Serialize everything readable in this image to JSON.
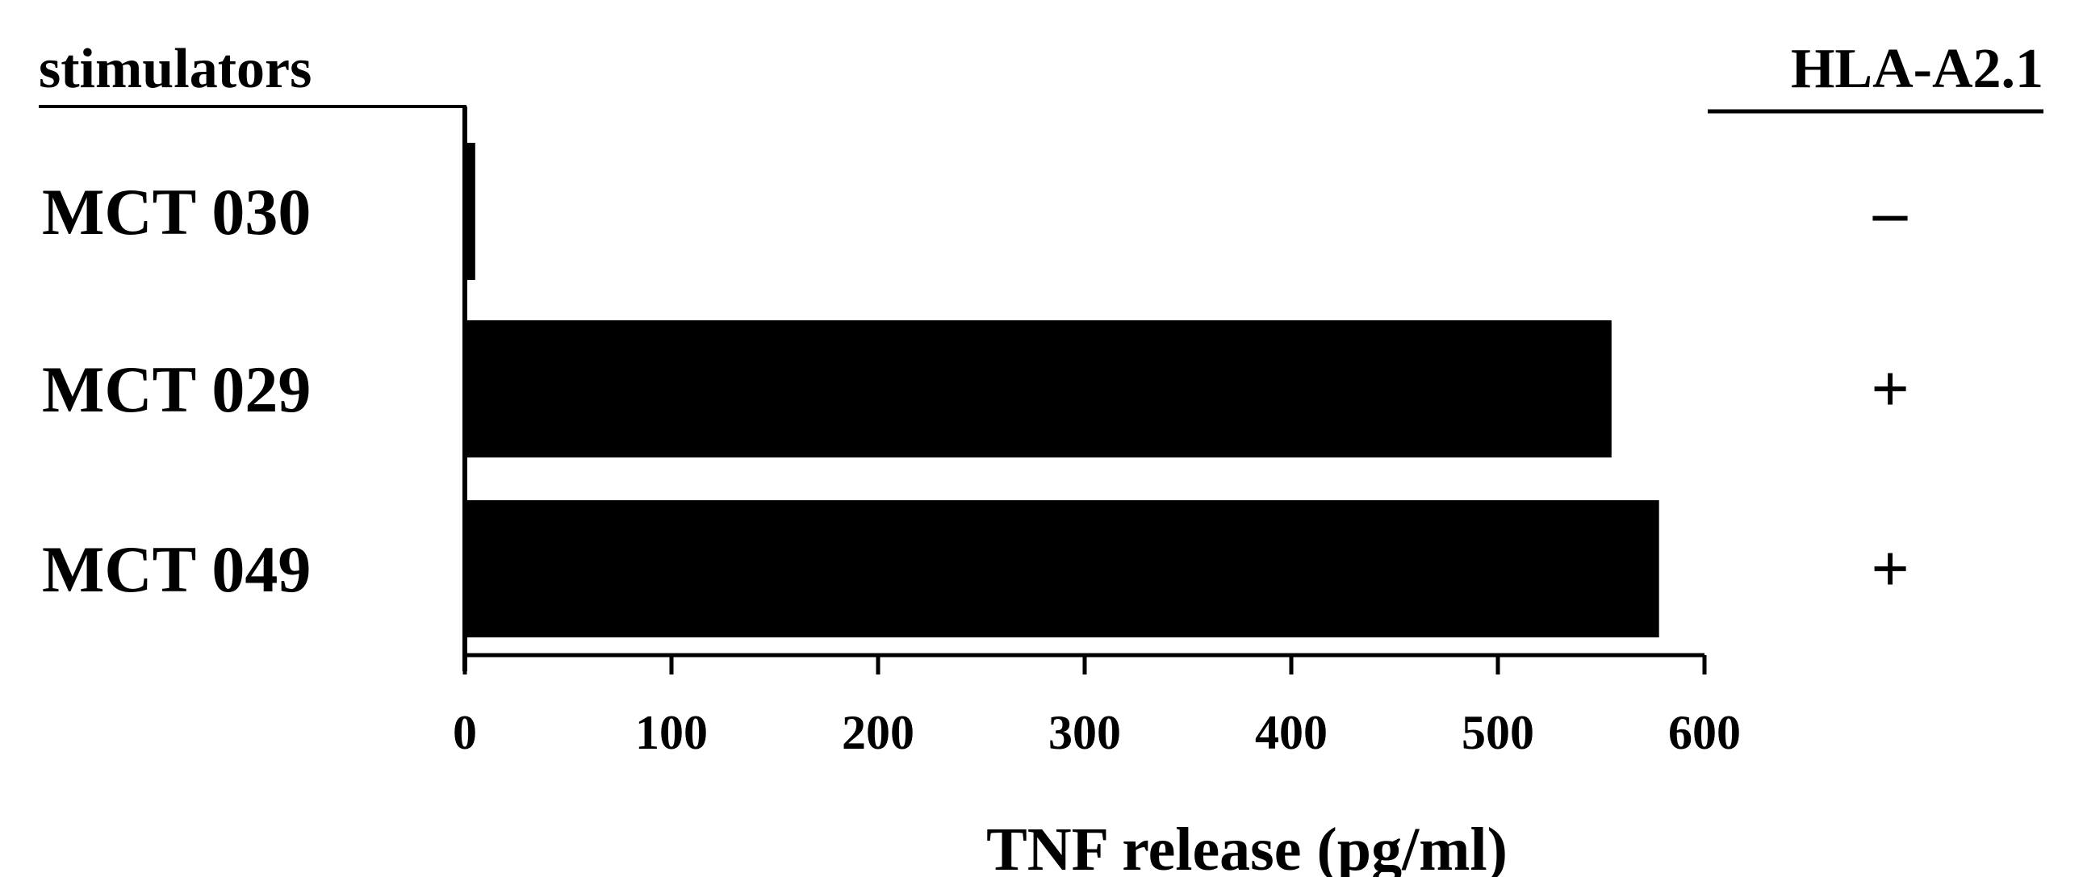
{
  "chart_data": {
    "type": "bar",
    "orientation": "horizontal",
    "row_header": "stimulators",
    "categories": [
      "MCT 030",
      "MCT 029",
      "MCT 049"
    ],
    "values": [
      5,
      555,
      578
    ],
    "xlabel": "TNF release (pg/ml)",
    "xlim": [
      0,
      600
    ],
    "xticks": [
      0,
      100,
      200,
      300,
      400,
      500,
      600
    ],
    "bar_color": "#000000",
    "grid": false,
    "legend": "none",
    "annotation_column": {
      "header": "HLA-A2.1",
      "values": [
        "–",
        "+",
        "+"
      ]
    }
  }
}
